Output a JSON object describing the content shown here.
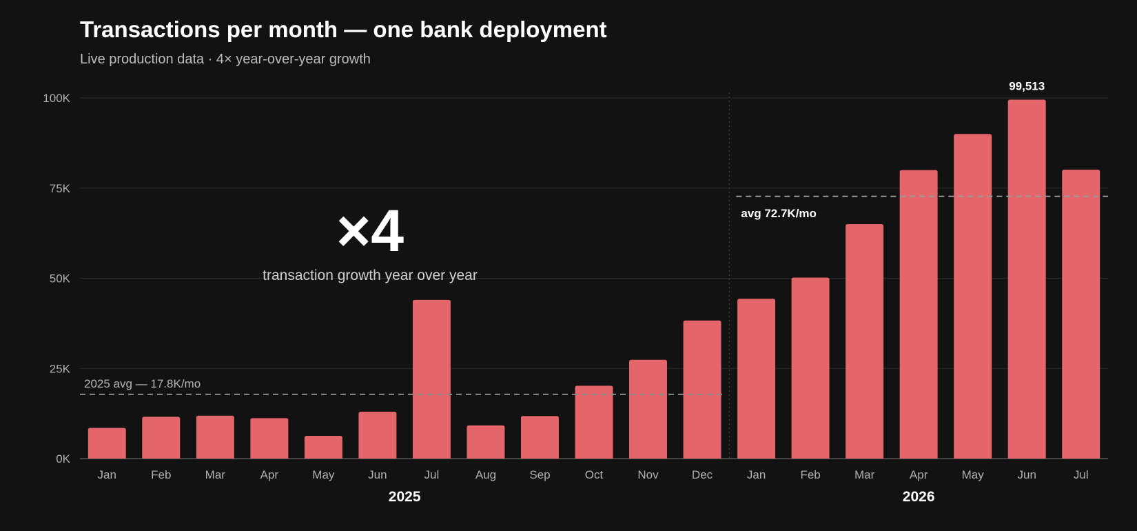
{
  "chart_data": {
    "type": "bar",
    "title": "Transactions per month — one bank deployment",
    "subtitle": "Live production data · 4× year-over-year growth",
    "xlabel": "",
    "ylabel": "",
    "ylim": [
      0,
      100000
    ],
    "yticks": [
      0,
      25000,
      50000,
      75000,
      100000
    ],
    "ytick_labels": [
      "0K",
      "25K",
      "50K",
      "75K",
      "100K"
    ],
    "grid": true,
    "categories": [
      "Jan",
      "Feb",
      "Mar",
      "Apr",
      "May",
      "Jun",
      "Jul",
      "Aug",
      "Sep",
      "Oct",
      "Nov",
      "Dec",
      "Jan",
      "Feb",
      "Mar",
      "Apr",
      "May",
      "Jun",
      "Jul"
    ],
    "years": [
      {
        "label": "2025",
        "months": 12
      },
      {
        "label": "2026",
        "months": 7
      }
    ],
    "values": [
      8500,
      11600,
      11900,
      11200,
      6300,
      13000,
      44000,
      9200,
      11800,
      20200,
      27400,
      38300,
      44300,
      50200,
      65000,
      80000,
      90000,
      99513,
      80100
    ],
    "bar_color": "#e5666a",
    "peak_label": "99,513",
    "averages": [
      {
        "label": "2025 avg — 17.8K/mo",
        "value": 17800
      },
      {
        "label": "avg 72.7K/mo",
        "value": 72700
      }
    ],
    "callout": {
      "big": "×4",
      "text": "transaction growth year over year"
    }
  }
}
